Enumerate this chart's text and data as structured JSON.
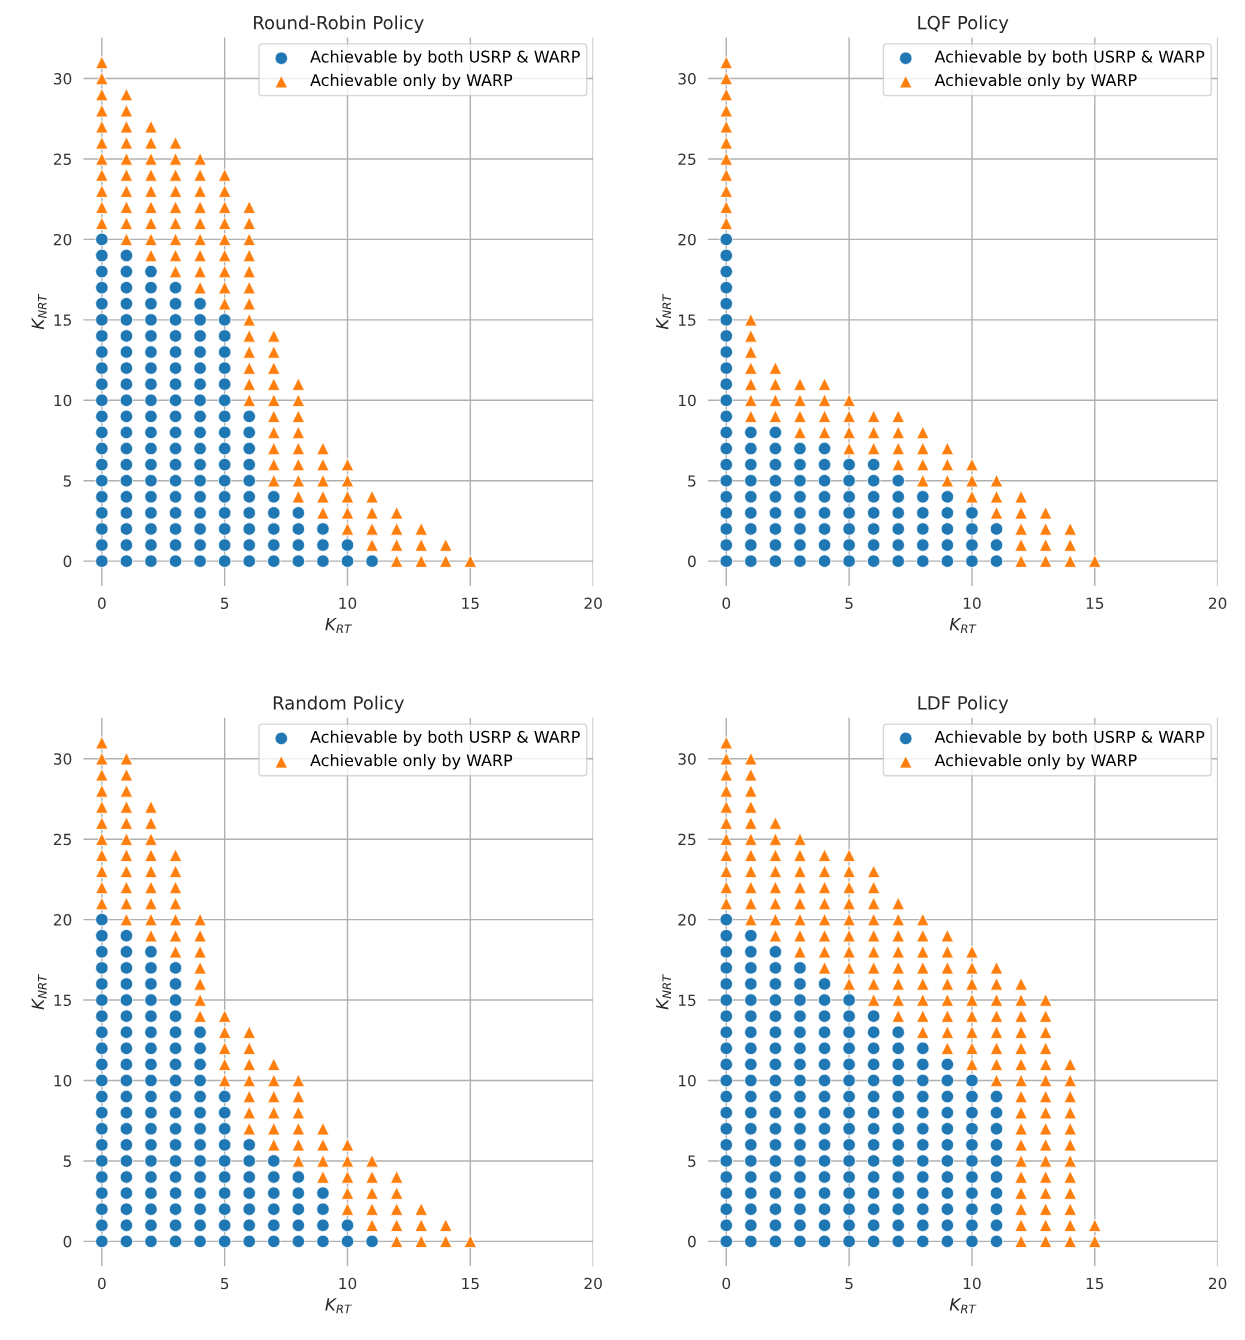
{
  "chart_data": [
    {
      "type": "scatter",
      "title": "Round-Robin Policy",
      "xlabel": "K$_{RT}$",
      "ylabel": "K$_{NRT}$",
      "xlim": [
        -0.75,
        20
      ],
      "ylim": [
        -1.55,
        32.55
      ],
      "xticks": [
        0,
        5,
        10,
        15,
        20
      ],
      "yticks": [
        0,
        5,
        10,
        15,
        20,
        25,
        30
      ],
      "grid": true,
      "legend": "top right",
      "series": [
        {
          "name": "Achievable by both USRP & WARP",
          "color": "#1f77b4",
          "marker": "circle",
          "x": [
            0,
            0,
            0,
            0,
            0,
            0,
            0,
            0,
            0,
            0,
            0,
            0,
            0,
            0,
            0,
            0,
            0,
            0,
            0,
            0,
            0,
            1,
            1,
            1,
            1,
            1,
            1,
            1,
            1,
            1,
            1,
            1,
            1,
            1,
            1,
            1,
            1,
            1,
            1,
            1,
            1,
            2,
            2,
            2,
            2,
            2,
            2,
            2,
            2,
            2,
            2,
            2,
            2,
            2,
            2,
            2,
            2,
            2,
            2,
            2,
            3,
            3,
            3,
            3,
            3,
            3,
            3,
            3,
            3,
            3,
            3,
            3,
            3,
            3,
            3,
            3,
            3,
            3,
            4,
            4,
            4,
            4,
            4,
            4,
            4,
            4,
            4,
            4,
            4,
            4,
            4,
            4,
            4,
            4,
            4,
            5,
            5,
            5,
            5,
            5,
            5,
            5,
            5,
            5,
            5,
            5,
            5,
            5,
            5,
            5,
            5,
            6,
            6,
            6,
            6,
            6,
            6,
            6,
            6,
            6,
            6,
            7,
            7,
            7,
            7,
            7,
            8,
            8,
            8,
            8,
            9,
            9,
            9,
            10,
            10,
            11
          ],
          "values": [
            0,
            1,
            2,
            3,
            4,
            5,
            6,
            7,
            8,
            9,
            10,
            11,
            12,
            13,
            14,
            15,
            16,
            17,
            18,
            19,
            20,
            0,
            1,
            2,
            3,
            4,
            5,
            6,
            7,
            8,
            9,
            10,
            11,
            12,
            13,
            14,
            15,
            16,
            17,
            18,
            19,
            0,
            1,
            2,
            3,
            4,
            5,
            6,
            7,
            8,
            9,
            10,
            11,
            12,
            13,
            14,
            15,
            16,
            17,
            18,
            0,
            1,
            2,
            3,
            4,
            5,
            6,
            7,
            8,
            9,
            10,
            11,
            12,
            13,
            14,
            15,
            16,
            17,
            0,
            1,
            2,
            3,
            4,
            5,
            6,
            7,
            8,
            9,
            10,
            11,
            12,
            13,
            14,
            15,
            16,
            0,
            1,
            2,
            3,
            4,
            5,
            6,
            7,
            8,
            9,
            10,
            11,
            12,
            13,
            14,
            15,
            0,
            1,
            2,
            3,
            4,
            5,
            6,
            7,
            8,
            9,
            0,
            1,
            2,
            3,
            4,
            0,
            1,
            2,
            3,
            0,
            1,
            2,
            0,
            1,
            0
          ]
        },
        {
          "name": "Achievable only by WARP",
          "color": "#ff7f0e",
          "marker": "triangle",
          "x": [
            0,
            0,
            0,
            0,
            0,
            0,
            0,
            0,
            0,
            0,
            0,
            1,
            1,
            1,
            1,
            1,
            1,
            1,
            1,
            1,
            1,
            2,
            2,
            2,
            2,
            2,
            2,
            2,
            2,
            2,
            3,
            3,
            3,
            3,
            3,
            3,
            3,
            3,
            3,
            4,
            4,
            4,
            4,
            4,
            4,
            4,
            4,
            4,
            5,
            5,
            5,
            5,
            5,
            5,
            5,
            5,
            5,
            6,
            6,
            6,
            6,
            6,
            6,
            6,
            6,
            6,
            6,
            6,
            6,
            6,
            7,
            7,
            7,
            7,
            7,
            7,
            7,
            7,
            7,
            7,
            8,
            8,
            8,
            8,
            8,
            8,
            8,
            8,
            9,
            9,
            9,
            9,
            9,
            10,
            10,
            10,
            10,
            10,
            11,
            11,
            11,
            11,
            12,
            12,
            12,
            12,
            13,
            13,
            13,
            14,
            14,
            15
          ],
          "values": [
            21,
            22,
            23,
            24,
            25,
            26,
            27,
            28,
            29,
            30,
            31,
            20,
            21,
            22,
            23,
            24,
            25,
            26,
            27,
            28,
            29,
            19,
            20,
            21,
            22,
            23,
            24,
            25,
            26,
            27,
            18,
            19,
            20,
            21,
            22,
            23,
            24,
            25,
            26,
            17,
            18,
            19,
            20,
            21,
            22,
            23,
            24,
            25,
            16,
            17,
            18,
            19,
            20,
            21,
            22,
            23,
            24,
            10,
            11,
            12,
            13,
            14,
            15,
            16,
            17,
            18,
            19,
            20,
            21,
            22,
            5,
            6,
            7,
            8,
            9,
            10,
            11,
            12,
            13,
            14,
            4,
            5,
            6,
            7,
            8,
            9,
            10,
            11,
            3,
            4,
            5,
            6,
            7,
            2,
            3,
            4,
            5,
            6,
            1,
            2,
            3,
            4,
            0,
            1,
            2,
            3,
            0,
            1,
            2,
            0,
            1,
            0
          ]
        }
      ]
    },
    {
      "type": "scatter",
      "title": "LQF Policy",
      "xlabel": "K$_{RT}$",
      "ylabel": "K$_{NRT}$",
      "xlim": [
        -0.75,
        20
      ],
      "ylim": [
        -1.55,
        32.55
      ],
      "xticks": [
        0,
        5,
        10,
        15,
        20
      ],
      "yticks": [
        0,
        5,
        10,
        15,
        20,
        25,
        30
      ],
      "grid": true,
      "legend": "top right",
      "series": [
        {
          "name": "Achievable by both USRP & WARP",
          "color": "#1f77b4",
          "marker": "circle",
          "x": [
            0,
            0,
            0,
            0,
            0,
            0,
            0,
            0,
            0,
            0,
            0,
            0,
            0,
            0,
            0,
            0,
            0,
            0,
            0,
            0,
            0,
            1,
            1,
            1,
            1,
            1,
            1,
            1,
            1,
            1,
            2,
            2,
            2,
            2,
            2,
            2,
            2,
            2,
            2,
            3,
            3,
            3,
            3,
            3,
            3,
            3,
            3,
            4,
            4,
            4,
            4,
            4,
            4,
            4,
            4,
            5,
            5,
            5,
            5,
            5,
            5,
            5,
            6,
            6,
            6,
            6,
            6,
            6,
            6,
            7,
            7,
            7,
            7,
            7,
            7,
            8,
            8,
            8,
            8,
            8,
            9,
            9,
            9,
            9,
            9,
            10,
            10,
            10,
            10,
            11,
            11,
            11
          ],
          "values": [
            0,
            1,
            2,
            3,
            4,
            5,
            6,
            7,
            8,
            9,
            10,
            11,
            12,
            13,
            14,
            15,
            16,
            17,
            18,
            19,
            20,
            0,
            1,
            2,
            3,
            4,
            5,
            6,
            7,
            8,
            0,
            1,
            2,
            3,
            4,
            5,
            6,
            7,
            8,
            0,
            1,
            2,
            3,
            4,
            5,
            6,
            7,
            0,
            1,
            2,
            3,
            4,
            5,
            6,
            7,
            0,
            1,
            2,
            3,
            4,
            5,
            6,
            0,
            1,
            2,
            3,
            4,
            5,
            6,
            0,
            1,
            2,
            3,
            4,
            5,
            0,
            1,
            2,
            3,
            4,
            0,
            1,
            2,
            3,
            4,
            0,
            1,
            2,
            3,
            0,
            1,
            2
          ]
        },
        {
          "name": "Achievable only by WARP",
          "color": "#ff7f0e",
          "marker": "triangle",
          "x": [
            0,
            0,
            0,
            0,
            0,
            0,
            0,
            0,
            0,
            0,
            0,
            1,
            1,
            1,
            1,
            1,
            1,
            1,
            2,
            2,
            2,
            2,
            3,
            3,
            3,
            3,
            4,
            4,
            4,
            4,
            5,
            5,
            5,
            5,
            6,
            6,
            6,
            7,
            7,
            7,
            7,
            8,
            8,
            8,
            8,
            9,
            9,
            9,
            10,
            10,
            10,
            11,
            11,
            11,
            12,
            12,
            12,
            12,
            12,
            13,
            13,
            13,
            13,
            14,
            14,
            14,
            15
          ],
          "values": [
            21,
            22,
            23,
            24,
            25,
            26,
            27,
            28,
            29,
            30,
            31,
            9,
            10,
            11,
            12,
            13,
            14,
            15,
            9,
            10,
            11,
            12,
            8,
            9,
            10,
            11,
            8,
            9,
            10,
            11,
            7,
            8,
            9,
            10,
            7,
            8,
            9,
            6,
            7,
            8,
            9,
            5,
            6,
            7,
            8,
            5,
            6,
            7,
            4,
            5,
            6,
            3,
            4,
            5,
            0,
            1,
            2,
            3,
            4,
            0,
            1,
            2,
            3,
            0,
            1,
            2,
            0
          ]
        }
      ]
    },
    {
      "type": "scatter",
      "title": "Random Policy",
      "xlabel": "K$_{RT}$",
      "ylabel": "K$_{NRT}$",
      "xlim": [
        -0.75,
        20
      ],
      "ylim": [
        -1.55,
        32.55
      ],
      "xticks": [
        0,
        5,
        10,
        15,
        20
      ],
      "yticks": [
        0,
        5,
        10,
        15,
        20,
        25,
        30
      ],
      "grid": true,
      "legend": "top right",
      "series": [
        {
          "name": "Achievable by both USRP & WARP",
          "color": "#1f77b4",
          "marker": "circle",
          "x": [
            0,
            0,
            0,
            0,
            0,
            0,
            0,
            0,
            0,
            0,
            0,
            0,
            0,
            0,
            0,
            0,
            0,
            0,
            0,
            0,
            0,
            1,
            1,
            1,
            1,
            1,
            1,
            1,
            1,
            1,
            1,
            1,
            1,
            1,
            1,
            1,
            1,
            1,
            1,
            1,
            1,
            2,
            2,
            2,
            2,
            2,
            2,
            2,
            2,
            2,
            2,
            2,
            2,
            2,
            2,
            2,
            2,
            2,
            2,
            2,
            3,
            3,
            3,
            3,
            3,
            3,
            3,
            3,
            3,
            3,
            3,
            3,
            3,
            3,
            3,
            3,
            3,
            3,
            4,
            4,
            4,
            4,
            4,
            4,
            4,
            4,
            4,
            4,
            4,
            4,
            4,
            4,
            5,
            5,
            5,
            5,
            5,
            5,
            5,
            5,
            5,
            5,
            6,
            6,
            6,
            6,
            6,
            6,
            6,
            7,
            7,
            7,
            7,
            7,
            7,
            8,
            8,
            8,
            8,
            8,
            9,
            9,
            9,
            9,
            10,
            10,
            11
          ],
          "values": [
            0,
            1,
            2,
            3,
            4,
            5,
            6,
            7,
            8,
            9,
            10,
            11,
            12,
            13,
            14,
            15,
            16,
            17,
            18,
            19,
            20,
            0,
            1,
            2,
            3,
            4,
            5,
            6,
            7,
            8,
            9,
            10,
            11,
            12,
            13,
            14,
            15,
            16,
            17,
            18,
            19,
            0,
            1,
            2,
            3,
            4,
            5,
            6,
            7,
            8,
            9,
            10,
            11,
            12,
            13,
            14,
            15,
            16,
            17,
            18,
            0,
            1,
            2,
            3,
            4,
            5,
            6,
            7,
            8,
            9,
            10,
            11,
            12,
            13,
            14,
            15,
            16,
            17,
            0,
            1,
            2,
            3,
            4,
            5,
            6,
            7,
            8,
            9,
            10,
            11,
            12,
            13,
            0,
            1,
            2,
            3,
            4,
            5,
            6,
            7,
            8,
            9,
            0,
            1,
            2,
            3,
            4,
            5,
            6,
            0,
            1,
            2,
            3,
            4,
            5,
            0,
            1,
            2,
            3,
            4,
            0,
            1,
            2,
            3,
            0,
            1,
            0
          ]
        },
        {
          "name": "Achievable only by WARP",
          "color": "#ff7f0e",
          "marker": "triangle",
          "x": [
            0,
            0,
            0,
            0,
            0,
            0,
            0,
            0,
            0,
            0,
            0,
            1,
            1,
            1,
            1,
            1,
            1,
            1,
            1,
            1,
            1,
            1,
            2,
            2,
            2,
            2,
            2,
            2,
            2,
            2,
            2,
            3,
            3,
            3,
            3,
            3,
            3,
            3,
            4,
            4,
            4,
            4,
            4,
            4,
            4,
            5,
            5,
            5,
            5,
            5,
            6,
            6,
            6,
            6,
            6,
            6,
            6,
            7,
            7,
            7,
            7,
            7,
            7,
            8,
            8,
            8,
            8,
            8,
            8,
            9,
            9,
            9,
            9,
            10,
            10,
            10,
            10,
            10,
            11,
            11,
            11,
            11,
            11,
            12,
            12,
            12,
            12,
            12,
            13,
            13,
            13,
            14,
            14,
            15
          ],
          "values": [
            21,
            22,
            23,
            24,
            25,
            26,
            27,
            28,
            29,
            30,
            31,
            20,
            21,
            22,
            23,
            24,
            25,
            26,
            27,
            28,
            29,
            30,
            19,
            20,
            21,
            22,
            23,
            24,
            25,
            26,
            27,
            18,
            19,
            20,
            21,
            22,
            23,
            24,
            14,
            15,
            16,
            17,
            18,
            19,
            20,
            10,
            11,
            12,
            13,
            14,
            7,
            8,
            9,
            10,
            11,
            12,
            13,
            6,
            7,
            8,
            9,
            10,
            11,
            5,
            6,
            7,
            8,
            9,
            10,
            4,
            5,
            6,
            7,
            2,
            3,
            4,
            5,
            6,
            1,
            2,
            3,
            4,
            5,
            0,
            1,
            2,
            3,
            4,
            0,
            1,
            2,
            0,
            1,
            0
          ]
        }
      ]
    },
    {
      "type": "scatter",
      "title": "LDF Policy",
      "xlabel": "K$_{RT}$",
      "ylabel": "K$_{NRT}$",
      "xlim": [
        -0.75,
        20
      ],
      "ylim": [
        -1.55,
        32.55
      ],
      "xticks": [
        0,
        5,
        10,
        15,
        20
      ],
      "yticks": [
        0,
        5,
        10,
        15,
        20,
        25,
        30
      ],
      "grid": true,
      "legend": "top right",
      "series": [
        {
          "name": "Achievable by both USRP & WARP",
          "color": "#1f77b4",
          "marker": "circle",
          "x": [
            0,
            0,
            0,
            0,
            0,
            0,
            0,
            0,
            0,
            0,
            0,
            0,
            0,
            0,
            0,
            0,
            0,
            0,
            0,
            0,
            0,
            1,
            1,
            1,
            1,
            1,
            1,
            1,
            1,
            1,
            1,
            1,
            1,
            1,
            1,
            1,
            1,
            1,
            1,
            1,
            1,
            2,
            2,
            2,
            2,
            2,
            2,
            2,
            2,
            2,
            2,
            2,
            2,
            2,
            2,
            2,
            2,
            2,
            2,
            2,
            3,
            3,
            3,
            3,
            3,
            3,
            3,
            3,
            3,
            3,
            3,
            3,
            3,
            3,
            3,
            3,
            3,
            3,
            4,
            4,
            4,
            4,
            4,
            4,
            4,
            4,
            4,
            4,
            4,
            4,
            4,
            4,
            4,
            4,
            4,
            5,
            5,
            5,
            5,
            5,
            5,
            5,
            5,
            5,
            5,
            5,
            5,
            5,
            5,
            5,
            5,
            6,
            6,
            6,
            6,
            6,
            6,
            6,
            6,
            6,
            6,
            6,
            6,
            6,
            6,
            6,
            7,
            7,
            7,
            7,
            7,
            7,
            7,
            7,
            7,
            7,
            7,
            7,
            7,
            7,
            8,
            8,
            8,
            8,
            8,
            8,
            8,
            8,
            8,
            8,
            8,
            8,
            8,
            9,
            9,
            9,
            9,
            9,
            9,
            9,
            9,
            9,
            9,
            9,
            9,
            10,
            10,
            10,
            10,
            10,
            10,
            10,
            10,
            10,
            10,
            10,
            11,
            11,
            11,
            11,
            11,
            11,
            11,
            11,
            11,
            11
          ],
          "values": [
            0,
            1,
            2,
            3,
            4,
            5,
            6,
            7,
            8,
            9,
            10,
            11,
            12,
            13,
            14,
            15,
            16,
            17,
            18,
            19,
            20,
            0,
            1,
            2,
            3,
            4,
            5,
            6,
            7,
            8,
            9,
            10,
            11,
            12,
            13,
            14,
            15,
            16,
            17,
            18,
            19,
            0,
            1,
            2,
            3,
            4,
            5,
            6,
            7,
            8,
            9,
            10,
            11,
            12,
            13,
            14,
            15,
            16,
            17,
            18,
            0,
            1,
            2,
            3,
            4,
            5,
            6,
            7,
            8,
            9,
            10,
            11,
            12,
            13,
            14,
            15,
            16,
            17,
            0,
            1,
            2,
            3,
            4,
            5,
            6,
            7,
            8,
            9,
            10,
            11,
            12,
            13,
            14,
            15,
            16,
            0,
            1,
            2,
            3,
            4,
            5,
            6,
            7,
            8,
            9,
            10,
            11,
            12,
            13,
            14,
            15,
            0,
            1,
            2,
            3,
            4,
            5,
            6,
            7,
            8,
            9,
            10,
            11,
            12,
            13,
            14,
            0,
            1,
            2,
            3,
            4,
            5,
            6,
            7,
            8,
            9,
            10,
            11,
            12,
            13,
            0,
            1,
            2,
            3,
            4,
            5,
            6,
            7,
            8,
            9,
            10,
            11,
            12,
            0,
            1,
            2,
            3,
            4,
            5,
            6,
            7,
            8,
            9,
            10,
            11,
            0,
            1,
            2,
            3,
            4,
            5,
            6,
            7,
            8,
            9,
            10,
            0,
            1,
            2,
            3,
            4,
            5,
            6,
            7,
            8,
            9
          ]
        },
        {
          "name": "Achievable only by WARP",
          "color": "#ff7f0e",
          "marker": "triangle",
          "x": [
            0,
            0,
            0,
            0,
            0,
            0,
            0,
            0,
            0,
            0,
            0,
            1,
            1,
            1,
            1,
            1,
            1,
            1,
            1,
            1,
            1,
            1,
            2,
            2,
            2,
            2,
            2,
            2,
            2,
            2,
            3,
            3,
            3,
            3,
            3,
            3,
            3,
            3,
            4,
            4,
            4,
            4,
            4,
            4,
            4,
            4,
            5,
            5,
            5,
            5,
            5,
            5,
            5,
            5,
            5,
            6,
            6,
            6,
            6,
            6,
            6,
            6,
            6,
            6,
            7,
            7,
            7,
            7,
            7,
            7,
            7,
            7,
            8,
            8,
            8,
            8,
            8,
            8,
            8,
            8,
            9,
            9,
            9,
            9,
            9,
            9,
            9,
            9,
            10,
            10,
            10,
            10,
            10,
            10,
            10,
            10,
            11,
            11,
            11,
            11,
            11,
            11,
            11,
            11,
            12,
            12,
            12,
            12,
            12,
            12,
            12,
            12,
            12,
            12,
            12,
            12,
            12,
            12,
            12,
            12,
            12,
            13,
            13,
            13,
            13,
            13,
            13,
            13,
            13,
            13,
            13,
            13,
            13,
            13,
            13,
            13,
            13,
            14,
            14,
            14,
            14,
            14,
            14,
            14,
            14,
            14,
            14,
            14,
            14,
            15,
            15
          ],
          "values": [
            21,
            22,
            23,
            24,
            25,
            26,
            27,
            28,
            29,
            30,
            31,
            20,
            21,
            22,
            23,
            24,
            25,
            26,
            27,
            28,
            29,
            30,
            19,
            20,
            21,
            22,
            23,
            24,
            25,
            26,
            18,
            19,
            20,
            21,
            22,
            23,
            24,
            25,
            17,
            18,
            19,
            20,
            21,
            22,
            23,
            24,
            16,
            17,
            18,
            19,
            20,
            21,
            22,
            23,
            24,
            15,
            16,
            17,
            18,
            19,
            20,
            21,
            22,
            23,
            14,
            15,
            16,
            17,
            18,
            19,
            20,
            21,
            13,
            14,
            15,
            16,
            17,
            18,
            19,
            20,
            12,
            13,
            14,
            15,
            16,
            17,
            18,
            19,
            11,
            12,
            13,
            14,
            15,
            16,
            17,
            18,
            10,
            11,
            12,
            13,
            14,
            15,
            16,
            17,
            0,
            1,
            2,
            3,
            4,
            5,
            6,
            7,
            8,
            9,
            10,
            11,
            12,
            13,
            14,
            15,
            16,
            0,
            1,
            2,
            3,
            4,
            5,
            6,
            7,
            8,
            9,
            10,
            11,
            12,
            13,
            14,
            15,
            0,
            1,
            2,
            3,
            4,
            5,
            6,
            7,
            8,
            9,
            10,
            11,
            0,
            1
          ]
        }
      ]
    }
  ]
}
